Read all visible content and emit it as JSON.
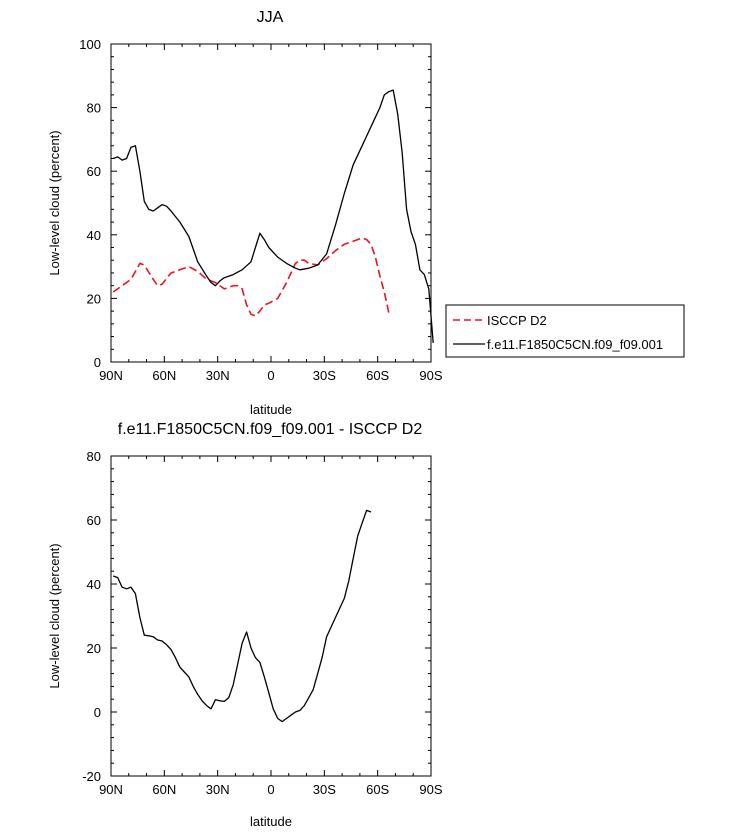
{
  "chart_data": [
    {
      "type": "line",
      "title": "JJA",
      "xlabel": "latitude",
      "ylabel": "Low-level cloud (percent)",
      "xlim": [
        90,
        -90
      ],
      "ylim": [
        0,
        100
      ],
      "xticks": [
        90,
        60,
        30,
        0,
        -30,
        -60,
        -90
      ],
      "xtick_labels": [
        "90N",
        "60N",
        "30N",
        "0",
        "30S",
        "60S",
        "90S"
      ],
      "yticks": [
        0,
        20,
        40,
        60,
        80,
        100
      ],
      "ytick_labels": [
        "0",
        "20",
        "40",
        "60",
        "80",
        "100"
      ],
      "legend": "right",
      "series": [
        {
          "name": "ISCCP D2",
          "color": "#e8161b",
          "dash": "dashed",
          "points": [
            [
              88.75,
              22
            ],
            [
              83.75,
              24
            ],
            [
              78.75,
              26
            ],
            [
              73.75,
              31
            ],
            [
              71.25,
              30.5
            ],
            [
              66.25,
              26
            ],
            [
              63.75,
              24
            ],
            [
              61.25,
              24.5
            ],
            [
              56.25,
              28
            ],
            [
              51.25,
              29
            ],
            [
              46.25,
              30
            ],
            [
              41.25,
              28.5
            ],
            [
              36.25,
              26
            ],
            [
              31.25,
              25
            ],
            [
              26.25,
              23
            ],
            [
              21.25,
              24
            ],
            [
              18.75,
              24
            ],
            [
              16.25,
              23
            ],
            [
              13.75,
              18
            ],
            [
              11.25,
              15
            ],
            [
              8.75,
              14.5
            ],
            [
              6.25,
              16
            ],
            [
              3.75,
              18
            ],
            [
              1.25,
              18.5
            ],
            [
              -3.75,
              20
            ],
            [
              -8.75,
              25
            ],
            [
              -13.75,
              31
            ],
            [
              -16.25,
              32
            ],
            [
              -18.75,
              32
            ],
            [
              -21.25,
              31
            ],
            [
              -26.25,
              30.5
            ],
            [
              -31.25,
              32.5
            ],
            [
              -36.25,
              35
            ],
            [
              -41.25,
              37
            ],
            [
              -46.25,
              38
            ],
            [
              -51.25,
              39
            ],
            [
              -53.75,
              38.5
            ],
            [
              -56.25,
              37
            ],
            [
              -58.75,
              33
            ],
            [
              -61.25,
              27
            ],
            [
              -63.75,
              22
            ],
            [
              -66.25,
              15.5
            ]
          ]
        },
        {
          "name": "f.e11.F1850C5CN.f09_f09.001",
          "color": "#000000",
          "dash": "solid",
          "points": [
            [
              88.75,
              64
            ],
            [
              86.25,
              64.5
            ],
            [
              83.75,
              63.5
            ],
            [
              81.25,
              64
            ],
            [
              78.75,
              67.5
            ],
            [
              76.25,
              68
            ],
            [
              73.75,
              60
            ],
            [
              71.25,
              50.5
            ],
            [
              68.75,
              48
            ],
            [
              66.25,
              47.5
            ],
            [
              63.75,
              48.5
            ],
            [
              61.25,
              49.5
            ],
            [
              58.75,
              49
            ],
            [
              56.25,
              47.5
            ],
            [
              51.25,
              44
            ],
            [
              46.25,
              39.5
            ],
            [
              41.25,
              31.5
            ],
            [
              36.25,
              27
            ],
            [
              33.75,
              25
            ],
            [
              31.25,
              24
            ],
            [
              28.75,
              25.5
            ],
            [
              26.25,
              26.5
            ],
            [
              21.25,
              27.5
            ],
            [
              16.25,
              29
            ],
            [
              11.25,
              31.5
            ],
            [
              8.75,
              36
            ],
            [
              6.25,
              40.5
            ],
            [
              3.75,
              38.5
            ],
            [
              1.25,
              36
            ],
            [
              -3.75,
              33
            ],
            [
              -8.75,
              31
            ],
            [
              -13.75,
              29.5
            ],
            [
              -16.25,
              29
            ],
            [
              -21.25,
              29.5
            ],
            [
              -26.25,
              30.5
            ],
            [
              -31.25,
              34
            ],
            [
              -36.25,
              43
            ],
            [
              -41.25,
              53
            ],
            [
              -46.25,
              62
            ],
            [
              -51.25,
              68
            ],
            [
              -56.25,
              74
            ],
            [
              -61.25,
              80
            ],
            [
              -63.75,
              84
            ],
            [
              -66.25,
              85
            ],
            [
              -68.75,
              85.5
            ],
            [
              -71.25,
              78
            ],
            [
              -73.75,
              66
            ],
            [
              -76.25,
              48
            ],
            [
              -78.75,
              41
            ],
            [
              -81.25,
              37
            ],
            [
              -83.75,
              29
            ],
            [
              -86.25,
              27.5
            ],
            [
              -88.75,
              23
            ],
            [
              -91.25,
              6
            ]
          ]
        }
      ]
    },
    {
      "type": "line",
      "title": "f.e11.F1850C5CN.f09_f09.001 - ISCCP D2",
      "xlabel": "latitude",
      "ylabel": "Low-level cloud (percent)",
      "xlim": [
        90,
        -90
      ],
      "ylim": [
        -20,
        80
      ],
      "xticks": [
        90,
        60,
        30,
        0,
        -30,
        -60,
        -90
      ],
      "xtick_labels": [
        "90N",
        "60N",
        "30N",
        "0",
        "30S",
        "60S",
        "90S"
      ],
      "yticks": [
        -20,
        0,
        20,
        40,
        60,
        80
      ],
      "ytick_labels": [
        "-20",
        "0",
        "20",
        "40",
        "60",
        "80"
      ],
      "series": [
        {
          "name": "",
          "color": "#000000",
          "dash": "solid",
          "points": [
            [
              88.75,
              42.5
            ],
            [
              86.25,
              42
            ],
            [
              83.75,
              39
            ],
            [
              81.25,
              38.5
            ],
            [
              78.75,
              39
            ],
            [
              76.25,
              37
            ],
            [
              73.75,
              29.5
            ],
            [
              71.25,
              24
            ],
            [
              68.75,
              23.8
            ],
            [
              66.25,
              23.5
            ],
            [
              63.75,
              22.5
            ],
            [
              61.25,
              22.2
            ],
            [
              58.75,
              21
            ],
            [
              56.25,
              19.5
            ],
            [
              53.75,
              17
            ],
            [
              51.25,
              14
            ],
            [
              48.75,
              12.5
            ],
            [
              46.25,
              11
            ],
            [
              43.75,
              8
            ],
            [
              41.25,
              5.5
            ],
            [
              38.75,
              3.5
            ],
            [
              36.25,
              2
            ],
            [
              33.75,
              1
            ],
            [
              31.25,
              3.8
            ],
            [
              28.75,
              3.5
            ],
            [
              26.25,
              3.3
            ],
            [
              23.75,
              4.5
            ],
            [
              21.25,
              8.5
            ],
            [
              18.75,
              15
            ],
            [
              16.25,
              21.5
            ],
            [
              13.75,
              25
            ],
            [
              11.25,
              20
            ],
            [
              8.75,
              17
            ],
            [
              6.25,
              15.5
            ],
            [
              3.75,
              11
            ],
            [
              1.25,
              6
            ],
            [
              -1.25,
              1
            ],
            [
              -3.75,
              -2
            ],
            [
              -6.25,
              -3
            ],
            [
              -8.75,
              -2
            ],
            [
              -11.25,
              -1
            ],
            [
              -13.75,
              0
            ],
            [
              -16.25,
              0.5
            ],
            [
              -18.75,
              2
            ],
            [
              -21.25,
              4.5
            ],
            [
              -23.75,
              7
            ],
            [
              -26.25,
              12
            ],
            [
              -28.75,
              17
            ],
            [
              -31.25,
              23.5
            ],
            [
              -36.25,
              29.5
            ],
            [
              -41.25,
              35.5
            ],
            [
              -43.75,
              41
            ],
            [
              -46.25,
              48
            ],
            [
              -48.75,
              55
            ],
            [
              -51.25,
              59
            ],
            [
              -53.75,
              63
            ],
            [
              -56.25,
              62.5
            ]
          ]
        }
      ]
    }
  ]
}
